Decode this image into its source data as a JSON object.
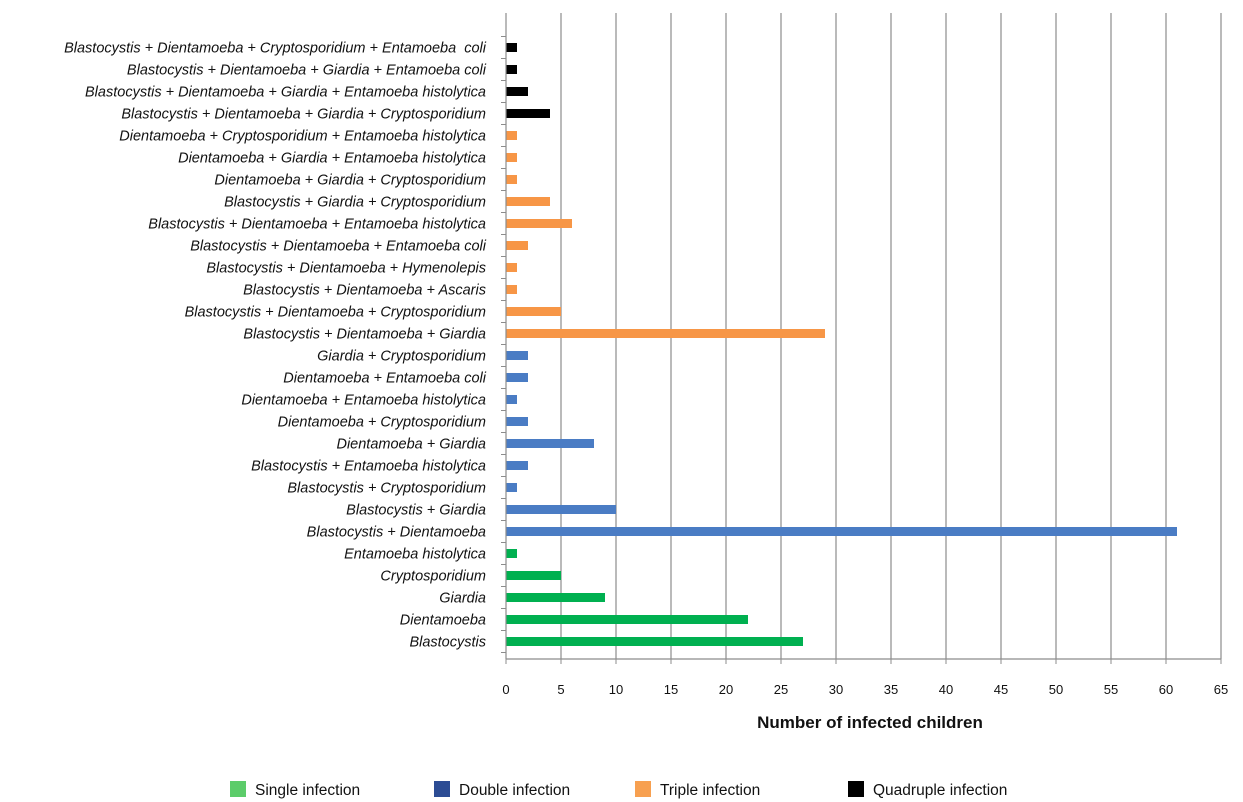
{
  "chart_data": {
    "type": "bar",
    "orientation": "horizontal",
    "title": "",
    "xlabel": "Number of infected children",
    "ylabel": "",
    "xlim": [
      0,
      65
    ],
    "x_ticks": [
      "0",
      "5",
      "10",
      "15",
      "20",
      "25",
      "30",
      "35",
      "40",
      "45",
      "50",
      "55",
      "60",
      "65"
    ],
    "grid": "vertical",
    "legend_position": "bottom",
    "categories": [
      "Blastocystis + Dientamoeba + Cryptosporidium + Entamoeba  coli",
      "Blastocystis + Dientamoeba + Giardia + Entamoeba coli",
      "Blastocystis + Dientamoeba + Giardia + Entamoeba histolytica",
      "Blastocystis + Dientamoeba + Giardia + Cryptosporidium",
      "Dientamoeba + Cryptosporidium + Entamoeba histolytica",
      "Dientamoeba + Giardia + Entamoeba histolytica",
      "Dientamoeba + Giardia + Cryptosporidium",
      "Blastocystis + Giardia + Cryptosporidium",
      "Blastocystis + Dientamoeba + Entamoeba histolytica",
      "Blastocystis + Dientamoeba + Entamoeba coli",
      "Blastocystis + Dientamoeba + Hymenolepis",
      "Blastocystis + Dientamoeba + Ascaris",
      "Blastocystis + Dientamoeba + Cryptosporidium",
      "Blastocystis + Dientamoeba + Giardia",
      "Giardia + Cryptosporidium",
      "Dientamoeba + Entamoeba coli",
      "Dientamoeba + Entamoeba histolytica",
      "Dientamoeba + Cryptosporidium",
      "Dientamoeba + Giardia",
      "Blastocystis + Entamoeba histolytica",
      "Blastocystis + Cryptosporidium",
      "Blastocystis + Giardia",
      "Blastocystis + Dientamoeba",
      "Entamoeba histolytica",
      "Cryptosporidium",
      "Giardia",
      "Dientamoeba",
      "Blastocystis"
    ],
    "values": [
      1,
      1,
      2,
      4,
      1,
      1,
      1,
      4,
      6,
      2,
      1,
      1,
      5,
      29,
      2,
      2,
      1,
      2,
      8,
      2,
      1,
      10,
      61,
      1,
      5,
      9,
      22,
      27
    ],
    "groups": [
      "quadruple",
      "quadruple",
      "quadruple",
      "quadruple",
      "triple",
      "triple",
      "triple",
      "triple",
      "triple",
      "triple",
      "triple",
      "triple",
      "triple",
      "triple",
      "double",
      "double",
      "double",
      "double",
      "double",
      "double",
      "double",
      "double",
      "double",
      "single",
      "single",
      "single",
      "single",
      "single"
    ],
    "series": [
      {
        "key": "single",
        "name": "Single infection",
        "color": "#00b050",
        "legend_color": "#5ccc6a"
      },
      {
        "key": "double",
        "name": "Double infection",
        "color": "#4a7cc4",
        "legend_color": "#2c4c94"
      },
      {
        "key": "triple",
        "name": "Triple infection",
        "color": "#f79646",
        "legend_color": "#f7a050"
      },
      {
        "key": "quadruple",
        "name": "Quadruple infection",
        "color": "#000000",
        "legend_color": "#000000"
      }
    ]
  }
}
